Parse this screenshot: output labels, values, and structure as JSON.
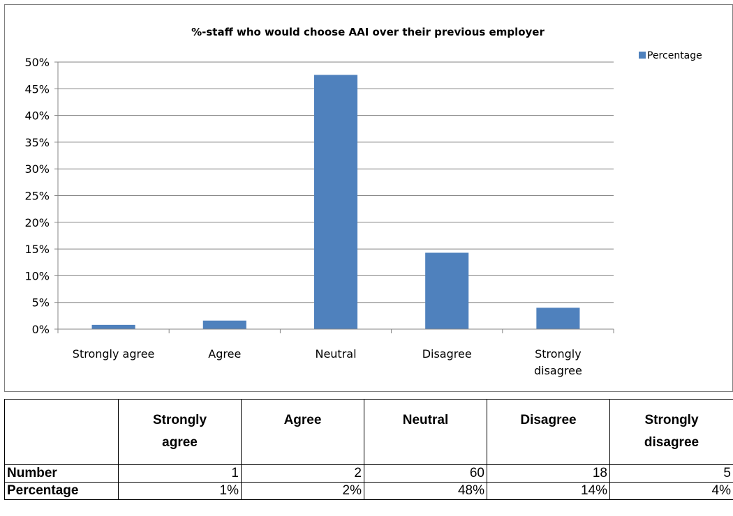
{
  "chart_data": {
    "type": "bar",
    "title": "%-staff who would choose AAI over their previous employer",
    "categories": [
      "Strongly agree",
      "Agree",
      "Neutral",
      "Disagree",
      "Strongly disagree"
    ],
    "category_lines": [
      [
        "Strongly agree"
      ],
      [
        "Agree"
      ],
      [
        "Neutral"
      ],
      [
        "Disagree"
      ],
      [
        "Strongly",
        "disagree"
      ]
    ],
    "series": [
      {
        "name": "Percentage",
        "values": [
          0.8,
          1.6,
          47.6,
          14.3,
          4.0
        ]
      }
    ],
    "ylim": [
      0,
      50
    ],
    "yticks": [
      "0%",
      "5%",
      "10%",
      "15%",
      "20%",
      "25%",
      "30%",
      "35%",
      "40%",
      "45%",
      "50%"
    ],
    "xlabel": "",
    "ylabel": "",
    "grid": true,
    "legend": "top-right",
    "bar_color": "#4f81bd"
  },
  "table": {
    "corner": "",
    "headers": [
      [
        "Strongly",
        "agree"
      ],
      [
        "Agree"
      ],
      [
        "Neutral"
      ],
      [
        "Disagree"
      ],
      [
        "Strongly",
        "disagree"
      ]
    ],
    "rows": [
      {
        "label": "Number",
        "cells": [
          "1",
          "2",
          "60",
          "18",
          "5"
        ]
      },
      {
        "label": "Percentage",
        "cells": [
          "1%",
          "2%",
          "48%",
          "14%",
          "4%"
        ]
      }
    ]
  }
}
